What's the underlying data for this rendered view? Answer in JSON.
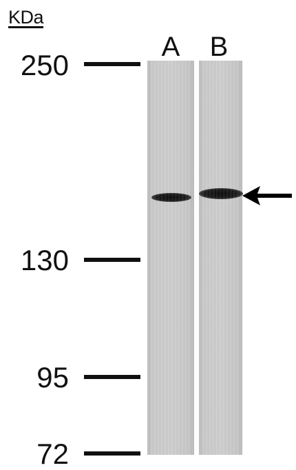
{
  "unit_label": "KDa",
  "lanes": [
    {
      "label": "A"
    },
    {
      "label": "B"
    }
  ],
  "markers": [
    {
      "label": "250"
    },
    {
      "label": "130"
    },
    {
      "label": "95"
    },
    {
      "label": "72"
    }
  ],
  "indicator": {
    "icon": "arrow-left-icon",
    "color": "#000000"
  }
}
